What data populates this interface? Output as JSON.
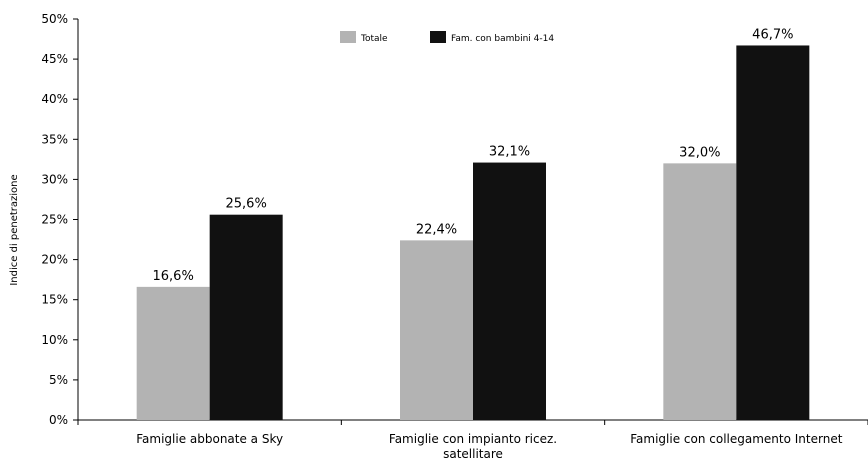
{
  "chart_data": {
    "type": "bar",
    "ylabel": "Indice di penetrazione",
    "ylim": [
      0,
      50
    ],
    "yticks": [
      0,
      5,
      10,
      15,
      20,
      25,
      30,
      35,
      40,
      45,
      50
    ],
    "ytick_labels": [
      "0%",
      "5%",
      "10%",
      "15%",
      "20%",
      "25%",
      "30%",
      "35%",
      "40%",
      "45%",
      "50%"
    ],
    "grid": false,
    "legend_position": "top-center",
    "categories": [
      [
        "Famiglie abbonate a Sky"
      ],
      [
        "Famiglie con impianto ricez.",
        "satellitare"
      ],
      [
        "Famiglie con collegamento Internet"
      ]
    ],
    "series": [
      {
        "name": "Totale",
        "color": "#b3b3b3",
        "values": [
          16.6,
          22.4,
          32.0
        ],
        "labels": [
          "16,6%",
          "22,4%",
          "32,0%"
        ]
      },
      {
        "name": "Fam. con bambini 4-14",
        "color": "#111111",
        "values": [
          25.6,
          32.1,
          46.7
        ],
        "labels": [
          "25,6%",
          "32,1%",
          "46,7%"
        ]
      }
    ]
  }
}
